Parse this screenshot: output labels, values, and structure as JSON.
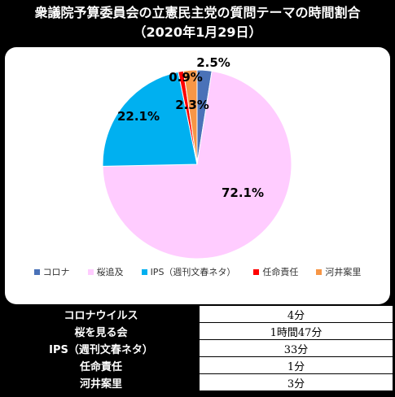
{
  "page": {
    "title_line1": "衆議院予算委員会の立憲民主党の質問テーマの時間割合",
    "title_line2": "（2020年1月29日）"
  },
  "chart_data": {
    "type": "pie",
    "title": "衆議院予算委員会の立憲民主党の質問テーマの時間割合（2020年1月29日）",
    "start_angle_deg": 0,
    "direction": "clockwise",
    "slices": [
      {
        "label": "コロナ",
        "value": 2.5,
        "display": "2.5%",
        "color": "#4a72b8"
      },
      {
        "label": "桜追及",
        "value": 72.1,
        "display": "72.1%",
        "color": "#ffccff"
      },
      {
        "label": "IPS（週刊文春ネタ）",
        "value": 22.1,
        "display": "22.1%",
        "color": "#00b0f0"
      },
      {
        "label": "任命責任",
        "value": 0.9,
        "display": "0.9%",
        "color": "#ff0000"
      },
      {
        "label": "河井案里",
        "value": 2.3,
        "display": "2.3%",
        "color": "#f79646"
      }
    ],
    "legend_position": "bottom"
  },
  "table": {
    "rows": [
      {
        "name": "コロナウイルス",
        "value": "4分"
      },
      {
        "name": "桜を見る会",
        "value": "1時間47分"
      },
      {
        "name": "IPS（週刊文春ネタ）",
        "value": "33分"
      },
      {
        "name": "任命責任",
        "value": "1分"
      },
      {
        "name": "河井案里",
        "value": "3分"
      }
    ]
  }
}
